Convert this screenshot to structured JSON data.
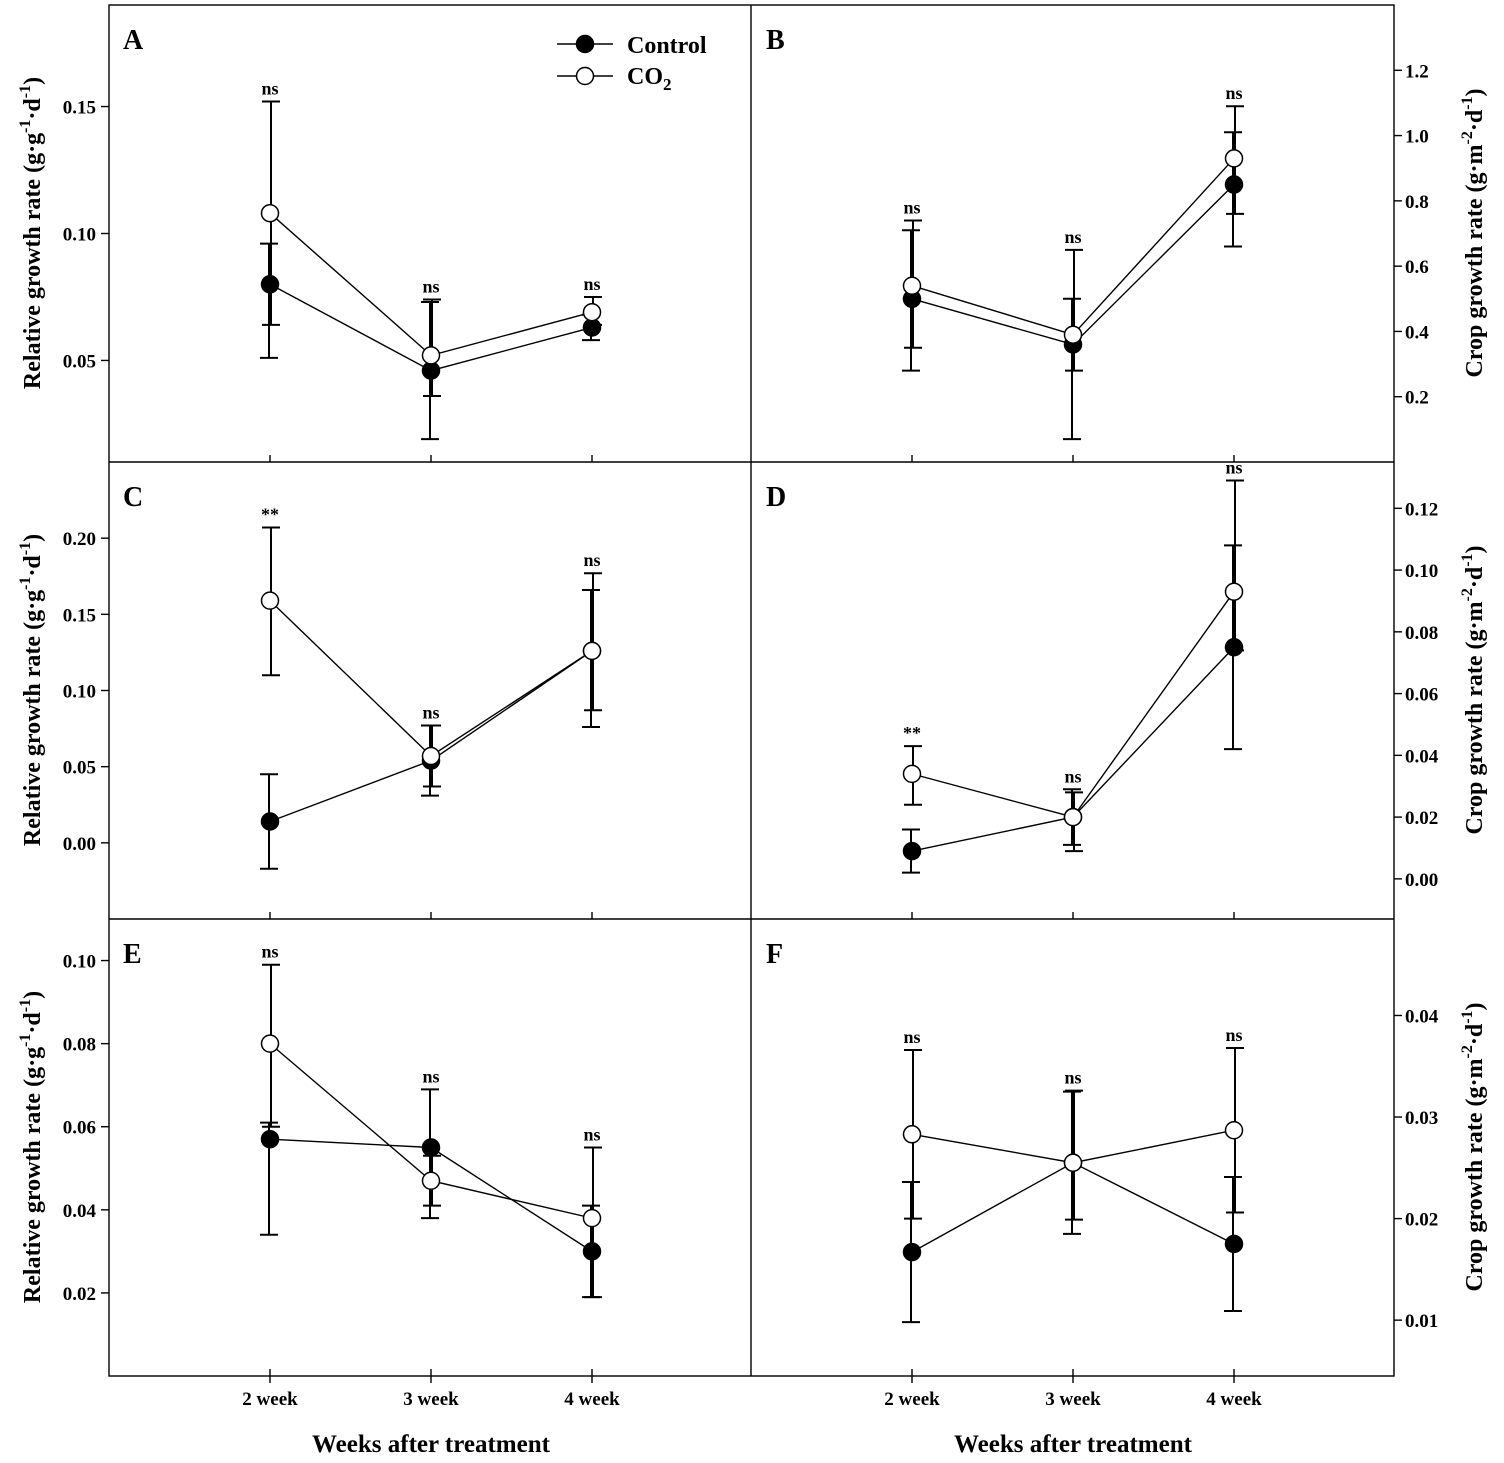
{
  "legend": {
    "control_label": "Control",
    "co2_label_main": "CO",
    "co2_label_sub": "2",
    "placement": "top-right of panel A"
  },
  "axes_text": {
    "xlabel": "Weeks after treatment",
    "ylabel_left_main": "Relative growth rate (g·g",
    "ylabel_left_sup": "-1",
    "ylabel_left_mid": "·d",
    "ylabel_left_end": ")",
    "ylabel_right_main": "Crop growth rate (g·m",
    "ylabel_right_sup": "-2",
    "ylabel_right_mid": "·d",
    "ylabel_right_end": ")"
  },
  "chart_data": [
    {
      "panel": "A",
      "type": "line",
      "y_axis_side": "left",
      "categories": [
        "2 week",
        "3 week",
        "4 week"
      ],
      "ylim": [
        0.01,
        0.19
      ],
      "yticks": [
        0.05,
        0.1,
        0.15
      ],
      "ytick_labels": [
        "0.05",
        "0.10",
        "0.15"
      ],
      "series": [
        {
          "name": "Control",
          "values": [
            0.08,
            0.046,
            0.063
          ],
          "err_low": [
            0.029,
            0.027,
            0.005
          ],
          "err_high": [
            0.016,
            0.027,
            0.005
          ]
        },
        {
          "name": "CO2",
          "values": [
            0.108,
            0.052,
            0.069
          ],
          "err_low": [
            0.044,
            0.016,
            0.005
          ],
          "err_high": [
            0.044,
            0.022,
            0.006
          ]
        }
      ],
      "annotations": [
        "ns",
        "ns",
        "ns"
      ]
    },
    {
      "panel": "B",
      "type": "line",
      "y_axis_side": "right",
      "categories": [
        "2 week",
        "3 week",
        "4 week"
      ],
      "ylim": [
        0.0,
        1.4
      ],
      "yticks": [
        0.2,
        0.4,
        0.6,
        0.8,
        1.0,
        1.2
      ],
      "ytick_labels": [
        "0.2",
        "0.4",
        "0.6",
        "0.8",
        "1.0",
        "1.2"
      ],
      "series": [
        {
          "name": "Control",
          "values": [
            0.5,
            0.36,
            0.85
          ],
          "err_low": [
            0.22,
            0.29,
            0.19
          ],
          "err_high": [
            0.21,
            0.14,
            0.16
          ]
        },
        {
          "name": "CO2",
          "values": [
            0.54,
            0.39,
            0.93
          ],
          "err_low": [
            0.19,
            0.11,
            0.17
          ],
          "err_high": [
            0.2,
            0.26,
            0.16
          ]
        }
      ],
      "annotations": [
        "ns",
        "ns",
        "ns"
      ]
    },
    {
      "panel": "C",
      "type": "line",
      "y_axis_side": "left",
      "categories": [
        "2 week",
        "3 week",
        "4 week"
      ],
      "ylim": [
        -0.05,
        0.25
      ],
      "yticks": [
        0.0,
        0.05,
        0.1,
        0.15,
        0.2
      ],
      "ytick_labels": [
        "0.00",
        "0.05",
        "0.10",
        "0.15",
        "0.20"
      ],
      "series": [
        {
          "name": "Control",
          "values": [
            0.014,
            0.054,
            0.126
          ],
          "err_low": [
            0.031,
            0.023,
            0.05
          ],
          "err_high": [
            0.031,
            0.023,
            0.04
          ]
        },
        {
          "name": "CO2",
          "values": [
            0.159,
            0.057,
            0.126
          ],
          "err_low": [
            0.049,
            0.02,
            0.039
          ],
          "err_high": [
            0.048,
            0.02,
            0.051
          ]
        }
      ],
      "annotations": [
        "**",
        "ns",
        "ns"
      ]
    },
    {
      "panel": "D",
      "type": "line",
      "y_axis_side": "right",
      "categories": [
        "2 week",
        "3 week",
        "4 week"
      ],
      "ylim": [
        -0.013,
        0.135
      ],
      "yticks": [
        0.0,
        0.02,
        0.04,
        0.06,
        0.08,
        0.1,
        0.12
      ],
      "ytick_labels": [
        "0.00",
        "0.02",
        "0.04",
        "0.06",
        "0.08",
        "0.10",
        "0.12"
      ],
      "series": [
        {
          "name": "Control",
          "values": [
            0.009,
            0.02,
            0.075
          ],
          "err_low": [
            0.007,
            0.009,
            0.033
          ],
          "err_high": [
            0.007,
            0.009,
            0.033
          ]
        },
        {
          "name": "CO2",
          "values": [
            0.034,
            0.02,
            0.093
          ],
          "err_low": [
            0.01,
            0.011,
            0.019
          ],
          "err_high": [
            0.009,
            0.008,
            0.036
          ]
        }
      ],
      "annotations": [
        "**",
        "ns",
        "ns"
      ]
    },
    {
      "panel": "E",
      "type": "line",
      "y_axis_side": "left",
      "categories": [
        "2 week",
        "3 week",
        "4 week"
      ],
      "ylim": [
        0.0,
        0.11
      ],
      "yticks": [
        0.02,
        0.04,
        0.06,
        0.08,
        0.1
      ],
      "ytick_labels": [
        "0.02",
        "0.04",
        "0.06",
        "0.08",
        "0.10"
      ],
      "series": [
        {
          "name": "Control",
          "values": [
            0.057,
            0.055,
            0.03
          ],
          "err_low": [
            0.023,
            0.017,
            0.011
          ],
          "err_high": [
            0.004,
            0.014,
            0.011
          ]
        },
        {
          "name": "CO2",
          "values": [
            0.08,
            0.047,
            0.038
          ],
          "err_low": [
            0.02,
            0.006,
            0.019
          ],
          "err_high": [
            0.019,
            0.006,
            0.017
          ]
        }
      ],
      "annotations": [
        "ns",
        "ns",
        "ns"
      ]
    },
    {
      "panel": "F",
      "type": "line",
      "y_axis_side": "right",
      "categories": [
        "2 week",
        "3 week",
        "4 week"
      ],
      "ylim": [
        0.0045,
        0.0495
      ],
      "yticks": [
        0.01,
        0.02,
        0.03,
        0.04
      ],
      "ytick_labels": [
        "0.01",
        "0.02",
        "0.03",
        "0.04"
      ],
      "series": [
        {
          "name": "Control",
          "values": [
            0.0167,
            0.0255,
            0.0175
          ],
          "err_low": [
            0.0069,
            0.007,
            0.0066
          ],
          "err_high": [
            0.0069,
            0.007,
            0.0066
          ]
        },
        {
          "name": "CO2",
          "values": [
            0.0283,
            0.0255,
            0.0287
          ],
          "err_low": [
            0.0083,
            0.0056,
            0.0081
          ],
          "err_high": [
            0.0083,
            0.0071,
            0.0081
          ]
        }
      ],
      "annotations": [
        "ns",
        "ns",
        "ns"
      ]
    }
  ]
}
